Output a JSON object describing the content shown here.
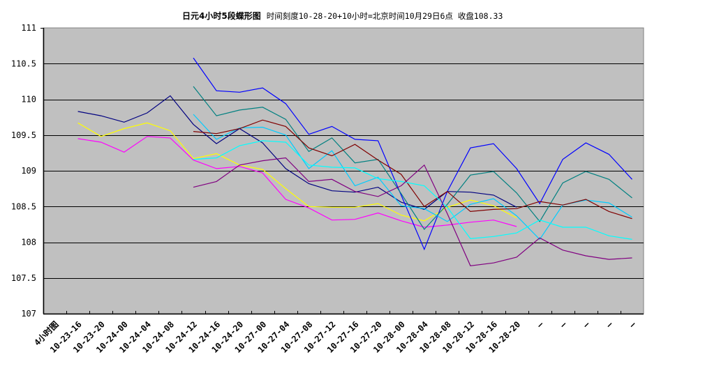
{
  "title": {
    "main": "日元4小时5段蝶形图",
    "subtitle": "时间刻度10-28-20+10小时=北京时间10月29日6点  收盘108.33"
  },
  "chart_data": {
    "type": "line",
    "title": "日元4小时5段蝶形图  时间刻度10-28-20+10小时=北京时间10月29日6点  收盘108.33",
    "xlabel": "",
    "ylabel": "",
    "ylim": [
      107,
      111
    ],
    "yticks": [
      107,
      107.5,
      108,
      108.5,
      109,
      109.5,
      110,
      110.5,
      111
    ],
    "ytick_labels": [
      "107",
      "107.5",
      "108",
      "108.5",
      "109",
      "109.5",
      "110",
      "110.5",
      "111"
    ],
    "grid": true,
    "legend": null,
    "plot_background": "#C0C0C0",
    "categories": [
      "4小时图",
      "10-23-16",
      "10-23-20",
      "10-24-00",
      "10-24-04",
      "10-24-08",
      "10-24-12",
      "10-24-16",
      "10-24-20",
      "10-27-00",
      "10-27-04",
      "10-27-08",
      "10-27-12",
      "10-27-16",
      "10-27-20",
      "10-28-00",
      "10-28-04",
      "10-28-08",
      "10-28-12",
      "10-28-16",
      "10-28-20",
      "—",
      "—",
      "—",
      "—",
      "—"
    ],
    "series": [
      {
        "name": "navy",
        "color": "#000080",
        "values": [
          null,
          109.83,
          109.77,
          109.68,
          109.81,
          110.05,
          109.65,
          109.38,
          109.59,
          109.39,
          109.03,
          108.82,
          108.72,
          108.7,
          108.77,
          108.56,
          108.46,
          108.71,
          108.7,
          108.66,
          108.49,
          null,
          null,
          null,
          null,
          null
        ]
      },
      {
        "name": "yellow",
        "color": "#FFFF00",
        "values": [
          null,
          109.67,
          109.48,
          109.59,
          109.67,
          109.56,
          109.17,
          109.24,
          109.08,
          109.02,
          108.75,
          108.5,
          108.49,
          108.49,
          108.54,
          108.38,
          108.3,
          108.49,
          108.59,
          108.51,
          108.34,
          null,
          null,
          null,
          null,
          null
        ]
      },
      {
        "name": "magenta",
        "color": "#FF00FF",
        "values": [
          null,
          109.45,
          109.4,
          109.26,
          109.48,
          109.46,
          109.15,
          109.03,
          109.06,
          108.97,
          108.6,
          108.48,
          108.31,
          108.32,
          108.41,
          108.3,
          108.21,
          108.24,
          108.28,
          108.31,
          108.22,
          null,
          null,
          null,
          null,
          null
        ]
      },
      {
        "name": "blue",
        "color": "#0000FF",
        "values": [
          null,
          null,
          null,
          null,
          null,
          null,
          110.58,
          110.12,
          110.1,
          110.16,
          109.94,
          109.51,
          109.62,
          109.44,
          109.42,
          108.66,
          107.9,
          108.71,
          109.32,
          109.38,
          109.03,
          108.54,
          109.16,
          109.39,
          109.23,
          108.88
        ]
      },
      {
        "name": "teal",
        "color": "#008080",
        "values": [
          null,
          null,
          null,
          null,
          null,
          null,
          110.18,
          109.77,
          109.85,
          109.89,
          109.72,
          109.27,
          109.46,
          109.11,
          109.16,
          108.68,
          108.18,
          108.53,
          108.94,
          108.99,
          108.69,
          108.29,
          108.83,
          108.99,
          108.88,
          108.62
        ]
      },
      {
        "name": "light-blue",
        "color": "#00CCFF",
        "values": [
          null,
          null,
          null,
          null,
          null,
          null,
          109.79,
          109.44,
          109.6,
          109.61,
          109.5,
          109.03,
          109.28,
          108.79,
          108.91,
          108.51,
          108.47,
          108.29,
          108.53,
          108.61,
          108.37,
          108.04,
          108.52,
          108.59,
          108.55,
          108.35
        ]
      },
      {
        "name": "maroon",
        "color": "#800000",
        "values": [
          null,
          null,
          null,
          null,
          null,
          null,
          109.55,
          109.52,
          109.59,
          109.71,
          109.62,
          109.32,
          109.21,
          109.37,
          109.15,
          108.95,
          108.5,
          108.71,
          108.43,
          108.46,
          108.47,
          108.57,
          108.52,
          108.6,
          108.43,
          108.33
        ]
      },
      {
        "name": "cyan",
        "color": "#00FFFF",
        "values": [
          null,
          null,
          null,
          null,
          null,
          null,
          109.16,
          109.18,
          109.35,
          109.42,
          109.4,
          109.08,
          109.05,
          109.04,
          108.89,
          108.85,
          108.79,
          108.49,
          108.05,
          108.08,
          108.13,
          108.31,
          108.21,
          108.21,
          108.09,
          108.04
        ]
      },
      {
        "name": "purple",
        "color": "#800080",
        "values": [
          null,
          null,
          null,
          null,
          null,
          null,
          108.77,
          108.85,
          109.08,
          109.14,
          109.18,
          108.85,
          108.88,
          108.71,
          108.64,
          108.79,
          109.08,
          108.4,
          107.67,
          107.71,
          107.79,
          108.06,
          107.89,
          107.81,
          107.76,
          107.78
        ]
      }
    ]
  }
}
